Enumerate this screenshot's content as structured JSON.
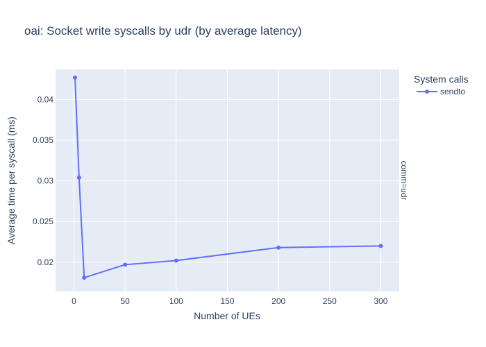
{
  "chart_data": {
    "type": "line",
    "title": "oai: Socket write syscalls by udr (by average latency)",
    "xlabel": "Number of UEs",
    "ylabel": "Average time per syscall (ms)",
    "xlim": [
      -18,
      318
    ],
    "ylim": [
      0.0164,
      0.0437
    ],
    "xticks": [
      0,
      50,
      100,
      150,
      200,
      250,
      300
    ],
    "xtick_labels": [
      "0",
      "50",
      "100",
      "150",
      "200",
      "250",
      "300"
    ],
    "yticks": [
      0.02,
      0.025,
      0.03,
      0.035,
      0.04
    ],
    "ytick_labels": [
      "0.02",
      "0.025",
      "0.03",
      "0.035",
      "0.04"
    ],
    "grid": true,
    "legend": {
      "title": "System calls",
      "position": "right"
    },
    "facet_label": "comm=udr",
    "series": [
      {
        "name": "sendto",
        "color": "#636efa",
        "x": [
          1,
          5,
          10,
          50,
          100,
          200,
          300
        ],
        "y": [
          0.0427,
          0.0304,
          0.0181,
          0.0197,
          0.0202,
          0.0218,
          0.022
        ]
      }
    ]
  },
  "colors": {
    "plot_background": "#e5ecf6",
    "grid": "#ffffff",
    "text": "#2a3f5f"
  }
}
